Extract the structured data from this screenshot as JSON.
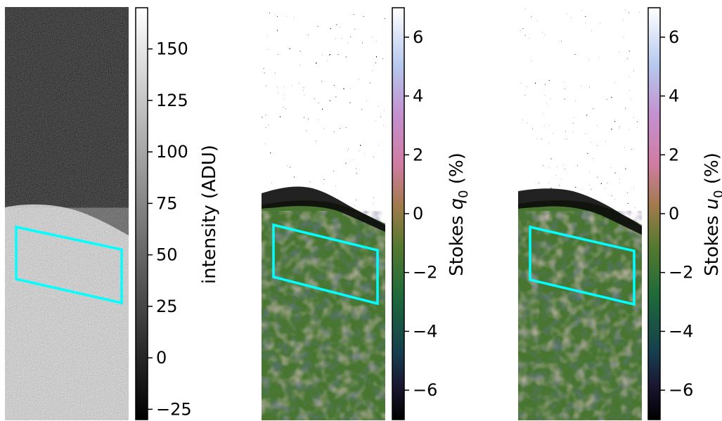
{
  "chart_data": [
    {
      "type": "heatmap",
      "description_label": "intensity image",
      "colormap": "gray",
      "colorbar": {
        "label": "intensity (ADU)",
        "range": [
          -30,
          170
        ],
        "ticks": [
          150,
          125,
          100,
          75,
          50,
          25,
          0,
          -25
        ],
        "tick_labels": [
          "150",
          "125",
          "100",
          "75",
          "50",
          "25",
          "0",
          "−25"
        ]
      },
      "region_levels": {
        "top": 10,
        "bottom": 160
      },
      "roi": {
        "color": "#00ffff"
      }
    },
    {
      "type": "heatmap",
      "colormap": "cubehelix",
      "colorbar": {
        "label_prefix": "Stokes ",
        "label_symbol": "q",
        "label_subscript": "0",
        "label_suffix": " (%)",
        "range": [
          -7,
          7
        ],
        "ticks": [
          6,
          4,
          2,
          0,
          -2,
          -4,
          -6
        ],
        "tick_labels": [
          "6",
          "4",
          "2",
          "0",
          "−2",
          "−4",
          "−6"
        ]
      },
      "roi": {
        "color": "#00ffff"
      }
    },
    {
      "type": "heatmap",
      "colormap": "cubehelix",
      "colorbar": {
        "label_prefix": "Stokes ",
        "label_symbol": "u",
        "label_subscript": "0",
        "label_suffix": " (%)",
        "range": [
          -7,
          7
        ],
        "ticks": [
          6,
          4,
          2,
          0,
          -2,
          -4,
          -6
        ],
        "tick_labels": [
          "6",
          "4",
          "2",
          "0",
          "−2",
          "−4",
          "−6"
        ]
      },
      "roi": {
        "color": "#00ffff"
      }
    }
  ]
}
